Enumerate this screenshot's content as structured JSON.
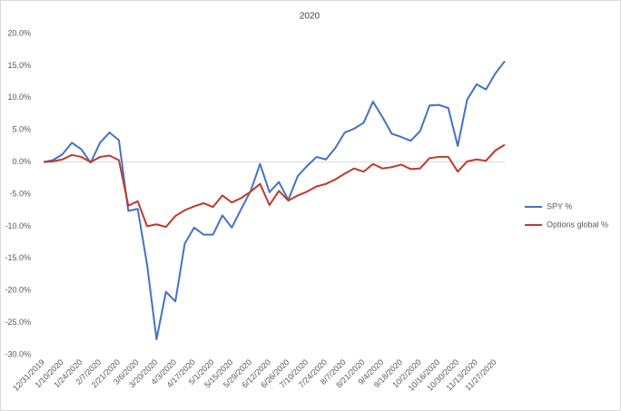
{
  "chart_data": {
    "type": "line",
    "title": "2020",
    "categories": [
      "12/31/2019",
      null,
      "1/10/2020",
      null,
      "1/24/2020",
      null,
      "2/7/2020",
      null,
      "2/21/2020",
      null,
      "3/6/2020",
      null,
      "3/20/2020",
      null,
      "4/3/2020",
      null,
      "4/17/2020",
      null,
      "5/1/2020",
      null,
      "5/15/2020",
      null,
      "5/29/2020",
      null,
      "6/12/2020",
      null,
      "6/26/2020",
      null,
      "7/10/2020",
      null,
      "7/24/2020",
      null,
      "8/7/2020",
      null,
      "8/21/2020",
      null,
      "9/4/2020",
      null,
      "9/18/2020",
      null,
      "10/2/2020",
      null,
      "10/16/2020",
      null,
      "10/30/2020",
      null,
      "11/13/2020",
      null,
      "11/27/2020",
      null
    ],
    "series": [
      {
        "name": "SPY %",
        "color": "#4472c4",
        "values": [
          0,
          0.3,
          1.2,
          3.0,
          2.0,
          -0.1,
          3.0,
          4.6,
          3.4,
          -7.6,
          -7.3,
          -16,
          -27.6,
          -20.2,
          -21.7,
          -12.7,
          -10.2,
          -11.3,
          -11.3,
          -8.3,
          -10.2,
          -7.3,
          -4.5,
          -0.3,
          -4.7,
          -3.1,
          -5.9,
          -2.2,
          -0.6,
          0.8,
          0.4,
          2.2,
          4.6,
          5.2,
          6.1,
          9.4,
          7.0,
          4.4,
          3.9,
          3.3,
          4.8,
          8.8,
          8.9,
          8.4,
          2.5,
          9.7,
          12.1,
          11.3,
          13.8,
          15.7
        ]
      },
      {
        "name": "Options global %",
        "color": "#c0392b",
        "values": [
          0,
          0.1,
          0.4,
          1.1,
          0.8,
          0,
          0.8,
          1.0,
          0.3,
          -6.8,
          -6.1,
          -10.0,
          -9.7,
          -10.1,
          -8.4,
          -7.5,
          -6.9,
          -6.4,
          -7.0,
          -5.2,
          -6.3,
          -5.6,
          -4.6,
          -3.4,
          -6.7,
          -4.5,
          -6.0,
          -5.2,
          -4.6,
          -3.8,
          -3.4,
          -2.7,
          -1.8,
          -1.0,
          -1.5,
          -0.3,
          -1.0,
          -0.8,
          -0.4,
          -1.1,
          -1.0,
          0.6,
          0.8,
          0.8,
          -1.5,
          0.1,
          0.4,
          0.2,
          1.8,
          2.7
        ]
      }
    ],
    "ylim": [
      -30,
      20
    ],
    "yticks": [
      {
        "value": -30,
        "label": "-30.0%"
      },
      {
        "value": -25,
        "label": "-25.0%"
      },
      {
        "value": -20,
        "label": "-20.0%"
      },
      {
        "value": -15,
        "label": "-15.0%"
      },
      {
        "value": -10,
        "label": "-10.0%"
      },
      {
        "value": -5,
        "label": "-5.0%"
      },
      {
        "value": 0,
        "label": "0.0%"
      },
      {
        "value": 5,
        "label": "5.0%"
      },
      {
        "value": 10,
        "label": "10.0%"
      },
      {
        "value": 15,
        "label": "15.0%"
      },
      {
        "value": 20,
        "label": "20.0%"
      }
    ],
    "legend": "right",
    "grid": false
  }
}
